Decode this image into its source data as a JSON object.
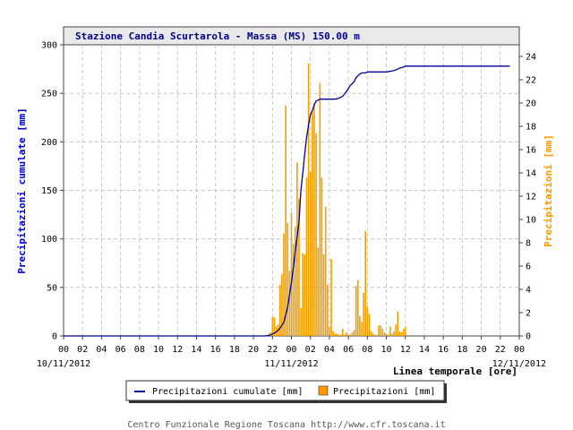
{
  "chart_data": {
    "type": "bar+line",
    "title": "Stazione Candia Scurtarola - Massa (MS) 150.00 m",
    "xlabel": "Linea temporale [ore]",
    "ylabel_left": "Precipitazioni cumulate [mm]",
    "ylabel_right": "Precipitazioni [mm]",
    "x_range_hours": [
      0,
      48
    ],
    "ylim_left": [
      0,
      300
    ],
    "ylim_right": [
      0,
      25
    ],
    "yticks_left": [
      0,
      50,
      100,
      150,
      200,
      250,
      300
    ],
    "yticks_right": [
      0,
      2,
      4,
      6,
      8,
      10,
      12,
      14,
      16,
      18,
      20,
      22,
      24
    ],
    "xtick_labels": [
      "00",
      "02",
      "04",
      "06",
      "08",
      "10",
      "12",
      "14",
      "16",
      "18",
      "20",
      "22",
      "00",
      "02",
      "04",
      "06",
      "08",
      "10",
      "12",
      "14",
      "16",
      "18",
      "20",
      "22",
      "00"
    ],
    "date_labels": [
      {
        "hour": 0,
        "text": "10/11/2012"
      },
      {
        "hour": 24,
        "text": "11/11/2012"
      },
      {
        "hour": 48,
        "text": "12/11/2012"
      }
    ],
    "grid": true,
    "legend_position": "bottom-center",
    "legend": [
      {
        "name": "Precipitazioni cumulate [mm]",
        "color": "#000099",
        "kind": "line"
      },
      {
        "name": "Precipitazioni [mm]",
        "color": "#ff9900",
        "kind": "bar"
      }
    ],
    "series": [
      {
        "name": "Precipitazioni [mm]",
        "axis": "right",
        "kind": "bar",
        "color": "#f0a000",
        "x": [
          21.6,
          21.8,
          22.0,
          22.2,
          22.4,
          22.6,
          22.8,
          23.0,
          23.2,
          23.4,
          23.6,
          23.8,
          24.0,
          24.2,
          24.4,
          24.6,
          24.8,
          25.0,
          25.2,
          25.4,
          25.6,
          25.8,
          26.0,
          26.2,
          26.4,
          26.6,
          26.8,
          27.0,
          27.2,
          27.4,
          27.6,
          27.8,
          28.0,
          28.2,
          28.4,
          28.6,
          28.8,
          29.0,
          29.2,
          29.4,
          29.6,
          29.8,
          30.0,
          30.2,
          30.4,
          30.6,
          30.8,
          31.0,
          31.2,
          31.4,
          31.6,
          31.8,
          32.0,
          32.2,
          32.4,
          32.6,
          32.8,
          33.0,
          33.2,
          33.4,
          33.6,
          33.8,
          34.0,
          34.2,
          34.4,
          34.6,
          34.8,
          35.0,
          35.2,
          35.4,
          35.6,
          35.8,
          36.0
        ],
        "values": [
          0.2,
          0.3,
          1.6,
          1.6,
          0.8,
          1.0,
          4.4,
          5.3,
          8.8,
          19.8,
          9.7,
          5.6,
          10.6,
          7.9,
          9.4,
          14.9,
          11.8,
          2.4,
          7.1,
          7.0,
          13.6,
          23.4,
          14.1,
          19.2,
          20.0,
          17.4,
          7.6,
          21.7,
          13.6,
          7.0,
          11.1,
          4.4,
          0.8,
          6.6,
          0.4,
          0.2,
          0.2,
          0.1,
          0.1,
          0.6,
          0.1,
          0.3,
          0.1,
          0.1,
          0.3,
          0.5,
          4.3,
          4.8,
          1.7,
          1.2,
          3.7,
          9.0,
          2.5,
          1.9,
          0.4,
          0.2,
          0.1,
          0.0,
          0.9,
          0.9,
          0.6,
          0.3,
          0.2,
          0.1,
          0.8,
          0.2,
          0.4,
          1.0,
          2.1,
          0.4,
          0.3,
          0.6,
          0.8
        ]
      },
      {
        "name": "Precipitazioni cumulate [mm]",
        "axis": "left",
        "kind": "line",
        "color": "#000099",
        "x": [
          0,
          21.0,
          21.6,
          22.0,
          22.4,
          22.8,
          23.2,
          23.6,
          24.0,
          24.4,
          24.8,
          25.0,
          25.2,
          25.4,
          25.6,
          25.8,
          26.0,
          26.2,
          26.4,
          26.6,
          26.8,
          27.0,
          27.4,
          27.8,
          28.2,
          28.6,
          29.0,
          29.4,
          29.8,
          30.2,
          30.6,
          30.8,
          31.0,
          31.2,
          31.4,
          31.6,
          31.8,
          32.0,
          32.4,
          33.0,
          34.0,
          34.6,
          35.0,
          35.4,
          35.8,
          36.0,
          37.0,
          38.0,
          40.0,
          42.0,
          44.0,
          46.0,
          47.0
        ],
        "y": [
          0,
          0,
          0.3,
          2,
          4,
          8,
          14,
          30,
          55,
          86,
          118,
          150,
          168,
          187,
          205,
          217,
          228,
          232,
          238,
          242,
          243,
          244,
          244,
          244,
          244,
          244,
          245,
          247,
          252,
          258,
          262,
          266,
          268,
          270,
          271,
          271,
          271,
          272,
          272,
          272,
          272,
          273,
          274,
          276,
          277,
          278,
          278,
          278,
          278,
          278,
          278,
          278,
          278
        ]
      }
    ]
  },
  "footer": "Centro Funzionale Regione Toscana http://www.cfr.toscana.it"
}
